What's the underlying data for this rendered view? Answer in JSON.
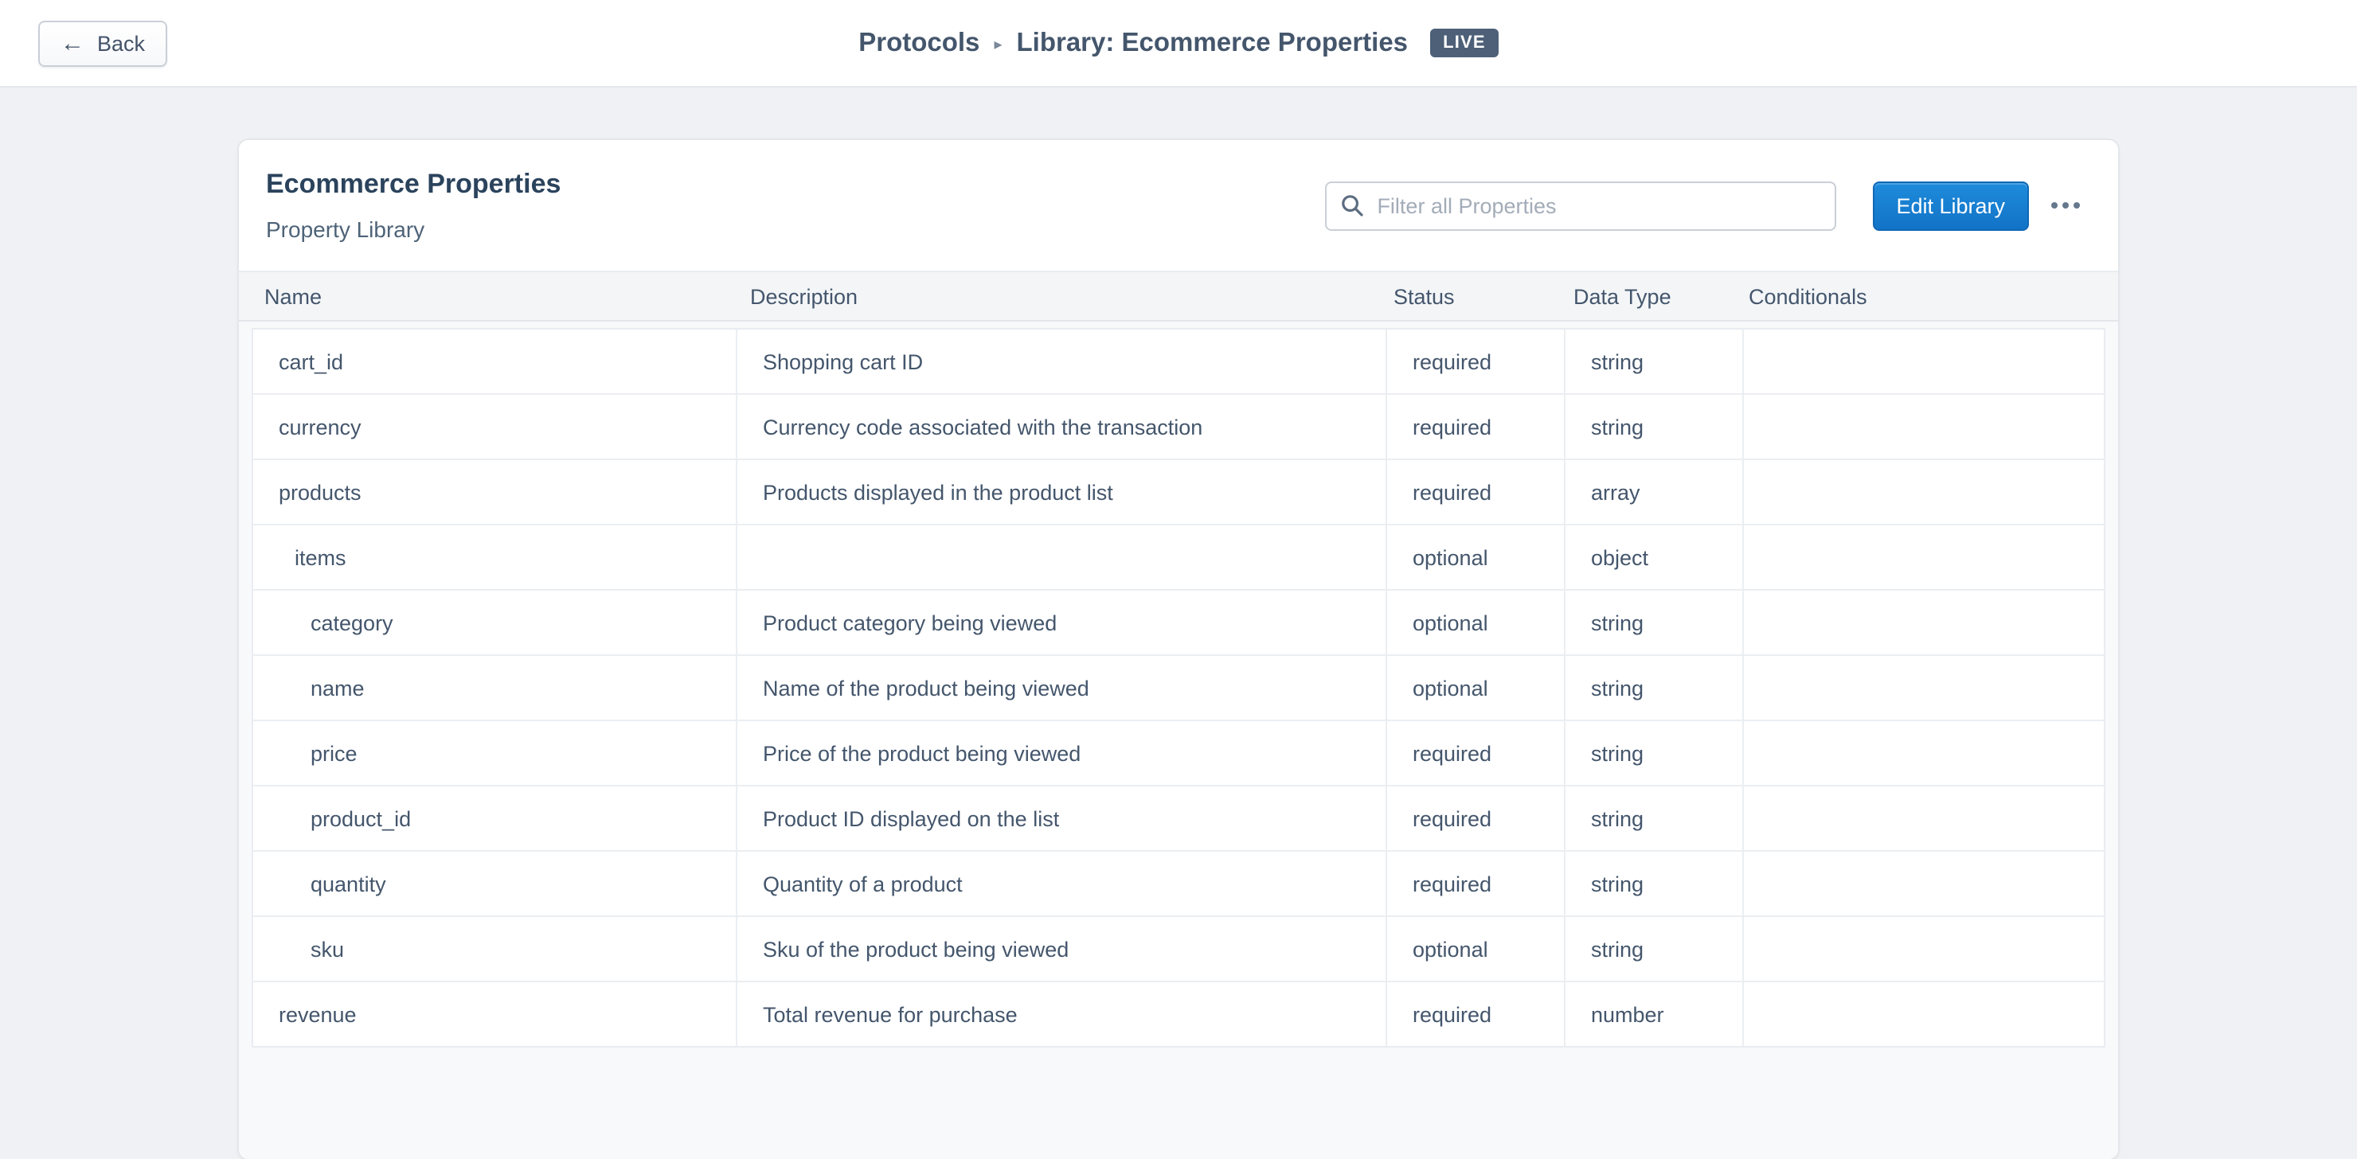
{
  "nav": {
    "back_label": "Back",
    "breadcrumb_root": "Protocols",
    "breadcrumb_current": "Library: Ecommerce Properties",
    "live_badge": "LIVE"
  },
  "header": {
    "title": "Ecommerce Properties",
    "subtitle": "Property Library",
    "filter_placeholder": "Filter all Properties",
    "filter_value": "",
    "edit_button": "Edit Library"
  },
  "table": {
    "columns": [
      "Name",
      "Description",
      "Status",
      "Data Type",
      "Conditionals"
    ],
    "rows": [
      {
        "name": "cart_id",
        "description": "Shopping cart ID",
        "status": "required",
        "data_type": "string",
        "conditionals": "",
        "indent": 0
      },
      {
        "name": "currency",
        "description": "Currency code associated with the transaction",
        "status": "required",
        "data_type": "string",
        "conditionals": "",
        "indent": 0
      },
      {
        "name": "products",
        "description": "Products displayed in the product list",
        "status": "required",
        "data_type": "array",
        "conditionals": "",
        "indent": 0
      },
      {
        "name": "items",
        "description": "",
        "status": "optional",
        "data_type": "object",
        "conditionals": "",
        "indent": 1
      },
      {
        "name": "category",
        "description": "Product category being viewed",
        "status": "optional",
        "data_type": "string",
        "conditionals": "",
        "indent": 2
      },
      {
        "name": "name",
        "description": "Name of the product being viewed",
        "status": "optional",
        "data_type": "string",
        "conditionals": "",
        "indent": 2
      },
      {
        "name": "price",
        "description": "Price of the product being viewed",
        "status": "required",
        "data_type": "string",
        "conditionals": "",
        "indent": 2
      },
      {
        "name": "product_id",
        "description": "Product ID displayed on the list",
        "status": "required",
        "data_type": "string",
        "conditionals": "",
        "indent": 2
      },
      {
        "name": "quantity",
        "description": "Quantity of a product",
        "status": "required",
        "data_type": "string",
        "conditionals": "",
        "indent": 2
      },
      {
        "name": "sku",
        "description": "Sku of the product being viewed",
        "status": "optional",
        "data_type": "string",
        "conditionals": "",
        "indent": 2
      },
      {
        "name": "revenue",
        "description": "Total revenue for purchase",
        "status": "required",
        "data_type": "number",
        "conditionals": "",
        "indent": 0
      }
    ]
  },
  "colors": {
    "accent_blue": "#1580D1",
    "live_badge_bg": "#4D6078",
    "page_background": "#EFF1F4",
    "text_slate": "#44566C"
  }
}
